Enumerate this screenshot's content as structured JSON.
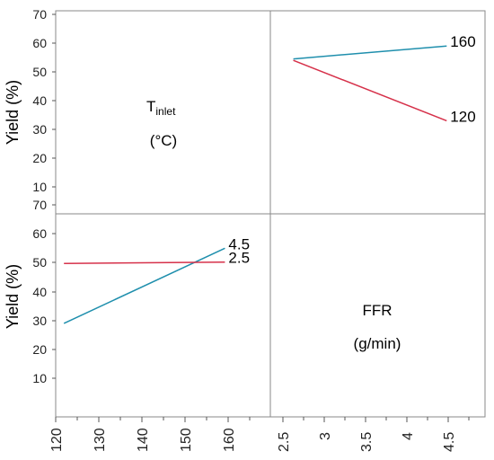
{
  "chart_data": {
    "type": "line",
    "title": "",
    "ylabel": "Yield (%)",
    "y_ticks_top": [
      "10",
      "20",
      "30",
      "40",
      "50",
      "60",
      "70"
    ],
    "y_ticks_bottom": [
      "10",
      "20",
      "30",
      "40",
      "50",
      "60",
      "70"
    ],
    "ylim": [
      0,
      70
    ],
    "x_ticks_left": [
      "120",
      "130",
      "140",
      "150",
      "160"
    ],
    "x_ticks_right": [
      "2.5",
      "3",
      "3.5",
      "4",
      "4.5"
    ],
    "factors": {
      "t_inlet": {
        "main": "T",
        "sub": "inlet",
        "unit": "(°C)"
      },
      "ffr": {
        "main": "FFR",
        "unit": "(g/min)"
      }
    },
    "panels": [
      {
        "name": "effect-of-ffr-by-tinlet",
        "x_factor": "FFR (g/min)",
        "xlim": [
          2.3,
          5.1
        ],
        "ylim": [
          0,
          70
        ],
        "series": [
          {
            "name": "160",
            "color": "#1f8fad",
            "x": [
              2.6,
              4.6
            ],
            "y": [
              54.5,
              59
            ]
          },
          {
            "name": "120",
            "color": "#d6314a",
            "x": [
              2.6,
              4.6
            ],
            "y": [
              54,
              33
            ]
          }
        ]
      },
      {
        "name": "effect-of-tinlet-by-ffr",
        "x_factor": "Tinlet (°C)",
        "xlim": [
          120,
          172
        ],
        "ylim": [
          0,
          70
        ],
        "series": [
          {
            "name": "4.5",
            "color": "#1f8fad",
            "x": [
              122,
              161
            ],
            "y": [
              29,
              55
            ]
          },
          {
            "name": "2.5",
            "color": "#d6314a",
            "x": [
              122,
              161
            ],
            "y": [
              49.7,
              50.2
            ]
          }
        ]
      }
    ]
  }
}
